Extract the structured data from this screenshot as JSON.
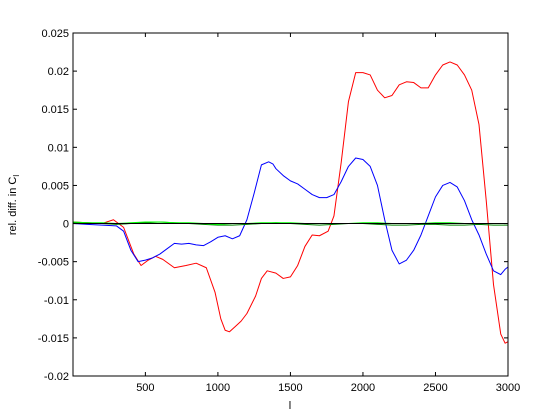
{
  "chart_data": {
    "type": "line",
    "title": "",
    "xlabel": "l",
    "ylabel": {
      "main": "rel. diff. in C",
      "subscript": "l"
    },
    "xlim": [
      1,
      3000
    ],
    "ylim": [
      -0.02,
      0.025
    ],
    "xticks": [
      500,
      1000,
      1500,
      2000,
      2500,
      3000
    ],
    "xtick_labels": [
      "500",
      "1000",
      "1500",
      "2000",
      "2500",
      "3000"
    ],
    "yticks": [
      -0.02,
      -0.015,
      -0.01,
      -0.005,
      0,
      0.005,
      0.01,
      0.015,
      0.02,
      0.025
    ],
    "ytick_labels": [
      "-0.02",
      "-0.015",
      "-0.01",
      "-0.005",
      "0",
      "0.005",
      "0.01",
      "0.015",
      "0.02",
      "0.025"
    ],
    "grid": false,
    "legend": "none",
    "series": [
      {
        "color": "#ff0000",
        "x": [
          1,
          100,
          200,
          280,
          350,
          420,
          470,
          520,
          570,
          620,
          700,
          780,
          850,
          920,
          980,
          1020,
          1050,
          1080,
          1120,
          1160,
          1200,
          1260,
          1300,
          1340,
          1400,
          1450,
          1500,
          1550,
          1600,
          1650,
          1700,
          1760,
          1800,
          1850,
          1900,
          1950,
          2000,
          2050,
          2100,
          2150,
          2200,
          2250,
          2300,
          2350,
          2400,
          2450,
          2500,
          2550,
          2600,
          2650,
          2700,
          2750,
          2800,
          2850,
          2900,
          2950,
          2980,
          3000
        ],
        "y": [
          0.0002,
          0.0001,
          0.0,
          0.0005,
          -0.0005,
          -0.004,
          -0.0055,
          -0.0048,
          -0.0043,
          -0.0047,
          -0.0058,
          -0.0055,
          -0.0052,
          -0.0058,
          -0.009,
          -0.0125,
          -0.014,
          -0.0142,
          -0.0135,
          -0.0128,
          -0.0118,
          -0.0095,
          -0.0072,
          -0.0062,
          -0.0065,
          -0.0072,
          -0.007,
          -0.0055,
          -0.003,
          -0.0015,
          -0.0016,
          -0.001,
          0.001,
          0.008,
          0.016,
          0.0198,
          0.0198,
          0.0195,
          0.0175,
          0.0165,
          0.0168,
          0.0182,
          0.0186,
          0.0185,
          0.0178,
          0.0178,
          0.0195,
          0.0208,
          0.0212,
          0.0208,
          0.0195,
          0.0175,
          0.013,
          0.003,
          -0.008,
          -0.0145,
          -0.0157,
          -0.0155
        ]
      },
      {
        "color": "#0000ff",
        "x": [
          1,
          100,
          200,
          300,
          350,
          400,
          450,
          500,
          550,
          600,
          650,
          700,
          750,
          800,
          850,
          900,
          950,
          1000,
          1050,
          1100,
          1150,
          1200,
          1250,
          1300,
          1350,
          1380,
          1400,
          1450,
          1500,
          1550,
          1600,
          1650,
          1700,
          1750,
          1800,
          1850,
          1900,
          1950,
          2000,
          2050,
          2100,
          2150,
          2200,
          2250,
          2300,
          2350,
          2400,
          2450,
          2500,
          2550,
          2600,
          2650,
          2700,
          2750,
          2800,
          2850,
          2900,
          2950,
          2980,
          3000
        ],
        "y": [
          0.0,
          -0.0001,
          -0.0002,
          -0.0003,
          -0.001,
          -0.0035,
          -0.005,
          -0.0048,
          -0.0045,
          -0.004,
          -0.0033,
          -0.0026,
          -0.0027,
          -0.0026,
          -0.0028,
          -0.0029,
          -0.0024,
          -0.0018,
          -0.0016,
          -0.002,
          -0.0016,
          0.0005,
          0.004,
          0.0077,
          0.0081,
          0.0078,
          0.0072,
          0.0063,
          0.0056,
          0.0052,
          0.0045,
          0.0038,
          0.0034,
          0.0034,
          0.0038,
          0.0055,
          0.0075,
          0.0086,
          0.0084,
          0.0075,
          0.005,
          0.0005,
          -0.0035,
          -0.0053,
          -0.0048,
          -0.0035,
          -0.0015,
          0.001,
          0.0035,
          0.005,
          0.0054,
          0.0048,
          0.003,
          0.0005,
          -0.0015,
          -0.004,
          -0.0062,
          -0.0067,
          -0.006,
          -0.0057
        ]
      },
      {
        "color": "#007f00",
        "x": [
          1,
          100,
          200,
          300,
          400,
          500,
          600,
          700,
          800,
          900,
          1000,
          1100,
          1200,
          1300,
          1400,
          1500,
          1600,
          1700,
          1800,
          1900,
          2000,
          2100,
          2200,
          2300,
          2400,
          2500,
          2600,
          2700,
          2800,
          2900,
          3000
        ],
        "y": [
          0.0001,
          0.0001,
          0.0,
          -0.0001,
          0.0,
          0.0001,
          0.0002,
          0.0001,
          0.0,
          -0.0001,
          -0.0002,
          -0.0002,
          -0.0001,
          0.0,
          0.0001,
          0.0,
          -0.0001,
          -0.0002,
          -0.0001,
          0.0,
          0.0,
          -0.0001,
          -0.0002,
          -0.0002,
          -0.0001,
          -0.0001,
          -0.0002,
          -0.0002,
          -0.0001,
          -0.0002,
          -0.0002
        ]
      },
      {
        "color": "#00ff00",
        "x": [
          1,
          100,
          200,
          300,
          400,
          500,
          600,
          700,
          800,
          900,
          1000,
          1100,
          1200,
          1300,
          1400,
          1500,
          1600,
          1700,
          1800,
          1900,
          2000,
          2100,
          2200,
          2300,
          2400,
          2500,
          2600,
          2700,
          2800,
          2900,
          3000
        ],
        "y": [
          0.0002,
          0.0001,
          0.0001,
          0.0,
          0.0001,
          0.0002,
          0.0002,
          0.0001,
          0.0001,
          0.0,
          -0.0001,
          0.0,
          0.0,
          0.0001,
          0.0001,
          0.0001,
          0.0,
          0.0,
          0.0,
          0.0,
          0.0001,
          0.0001,
          0.0,
          0.0,
          0.0,
          0.0001,
          0.0001,
          0.0,
          0.0,
          0.0,
          0.0
        ]
      },
      {
        "color": "#000000",
        "x": [
          1,
          3000
        ],
        "y": [
          0.0,
          0.0
        ]
      }
    ]
  }
}
